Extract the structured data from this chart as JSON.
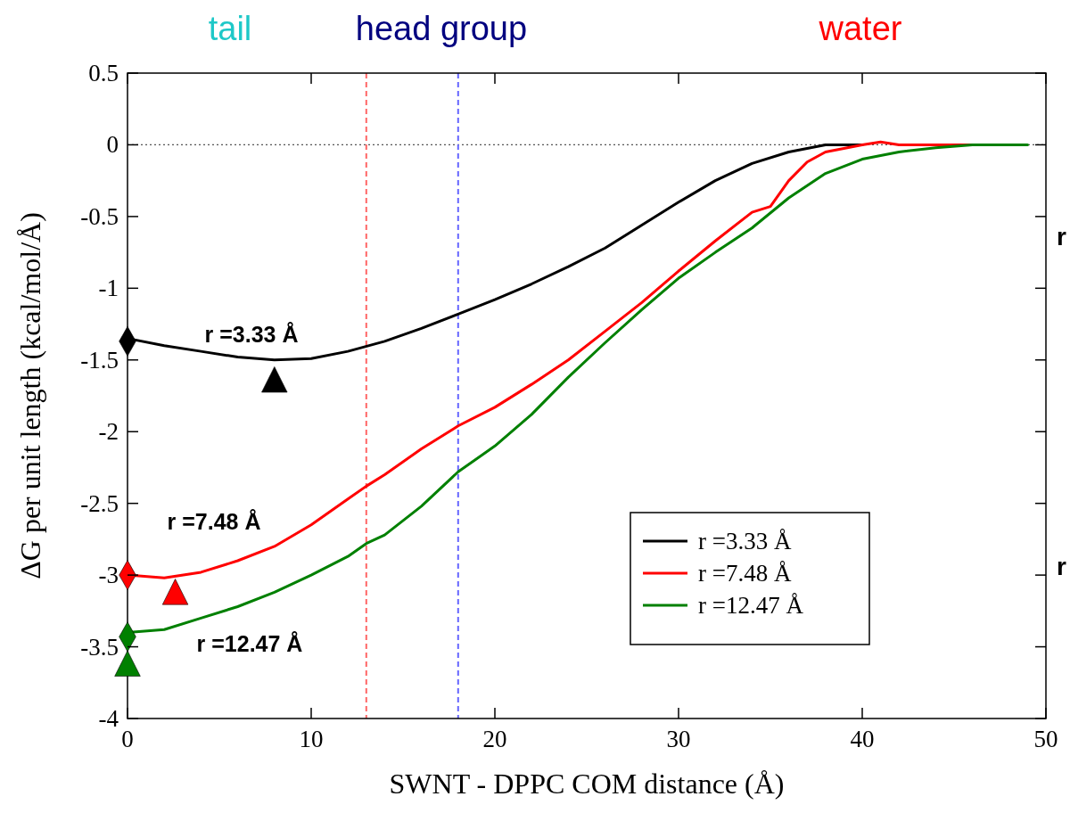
{
  "chart_data": {
    "type": "line",
    "xlabel": "SWNT - DPPC COM distance (Å)",
    "ylabel": "ΔG per unit length (kcal/mol/Å)",
    "xlim": [
      0,
      50
    ],
    "ylim": [
      -4,
      0.5
    ],
    "xticks": [
      0,
      10,
      20,
      30,
      40,
      50
    ],
    "yticks": [
      -4,
      -3.5,
      -3,
      -2.5,
      -2,
      -1.5,
      -1,
      -0.5,
      0,
      0.5
    ],
    "legend": "bottom right",
    "grid": false,
    "line_style": "solid",
    "series": [
      {
        "name": "r =3.33 Å",
        "color": "#000000",
        "x": [
          0,
          2,
          4,
          6,
          8,
          10,
          12,
          14,
          16,
          18,
          20,
          22,
          24,
          26,
          28,
          30,
          32,
          34,
          36,
          38,
          40
        ],
        "values": [
          -1.35,
          -1.4,
          -1.44,
          -1.48,
          -1.5,
          -1.49,
          -1.44,
          -1.37,
          -1.28,
          -1.18,
          -1.08,
          -0.97,
          -0.85,
          -0.72,
          -0.56,
          -0.4,
          -0.25,
          -0.13,
          -0.05,
          0,
          0
        ]
      },
      {
        "name": "r =7.48 Å",
        "color": "#ff0000",
        "x": [
          0,
          2,
          4,
          6,
          8,
          10,
          12,
          13,
          14,
          16,
          18,
          20,
          22,
          24,
          26,
          28,
          30,
          32,
          34,
          35,
          36,
          37,
          38,
          40,
          41,
          42,
          44,
          46
        ],
        "values": [
          -3,
          -3.02,
          -2.98,
          -2.9,
          -2.8,
          -2.65,
          -2.47,
          -2.38,
          -2.3,
          -2.12,
          -1.96,
          -1.83,
          -1.67,
          -1.5,
          -1.3,
          -1.1,
          -0.88,
          -0.67,
          -0.47,
          -0.43,
          -0.25,
          -0.12,
          -0.05,
          0,
          0.02,
          0,
          0,
          0
        ]
      },
      {
        "name": "r =12.47 Å",
        "color": "#008000",
        "x": [
          0,
          2,
          4,
          6,
          8,
          10,
          12,
          13,
          14,
          16,
          18,
          20,
          22,
          24,
          26,
          28,
          30,
          32,
          34,
          36,
          38,
          40,
          42,
          44,
          46,
          49
        ],
        "values": [
          -3.4,
          -3.38,
          -3.3,
          -3.22,
          -3.12,
          -3,
          -2.87,
          -2.78,
          -2.72,
          -2.52,
          -2.28,
          -2.1,
          -1.88,
          -1.62,
          -1.38,
          -1.15,
          -0.93,
          -0.75,
          -0.58,
          -0.37,
          -0.2,
          -0.1,
          -0.05,
          -0.02,
          0,
          0
        ]
      },
      {
        "type": "scatter",
        "marker": "diamond",
        "x": [
          0,
          0,
          0
        ],
        "values": [
          -1.37,
          -3,
          -3.43
        ],
        "colors": [
          "#000000",
          "#ff0000",
          "#008000"
        ]
      },
      {
        "type": "scatter",
        "marker": "triangle",
        "x": [
          8,
          2.6,
          0
        ],
        "values": [
          -1.65,
          -3.13,
          -3.63
        ],
        "colors": [
          "#000000",
          "#ff0000",
          "#008000"
        ]
      }
    ],
    "ref_lines": [
      {
        "axis": "y",
        "value": 0,
        "color": "#555555",
        "line_style": "dotted"
      },
      {
        "axis": "x",
        "value": 13,
        "color": "#ff6666",
        "line_style": "dashed"
      },
      {
        "axis": "x",
        "value": 18,
        "color": "#6666ff",
        "line_style": "dashed"
      }
    ],
    "annotations": [
      "tail",
      "head group",
      "water",
      "r =3.33 Å",
      "r =7.48 Å",
      "r =12.47 Å",
      "r",
      "r"
    ]
  }
}
